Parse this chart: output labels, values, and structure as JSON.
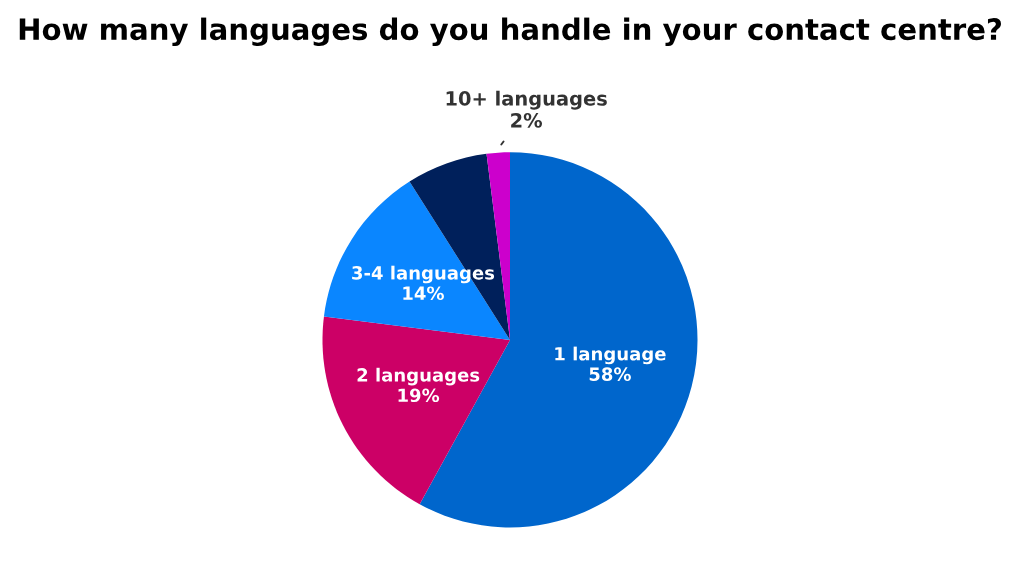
{
  "chart_data": {
    "type": "pie",
    "title": "How many languages do you handle in your contact centre?",
    "categories": [
      "1 language",
      "2 languages",
      "3-4 languages",
      null,
      "10+ languages"
    ],
    "values": [
      58,
      19,
      14,
      7,
      2
    ],
    "value_labels": [
      "58%",
      "19%",
      "14%",
      null,
      "2%"
    ],
    "colors": [
      "#0066cc",
      "#cc0066",
      "#0a86ff",
      "#00205b",
      "#cc00cc"
    ],
    "legend": false
  }
}
